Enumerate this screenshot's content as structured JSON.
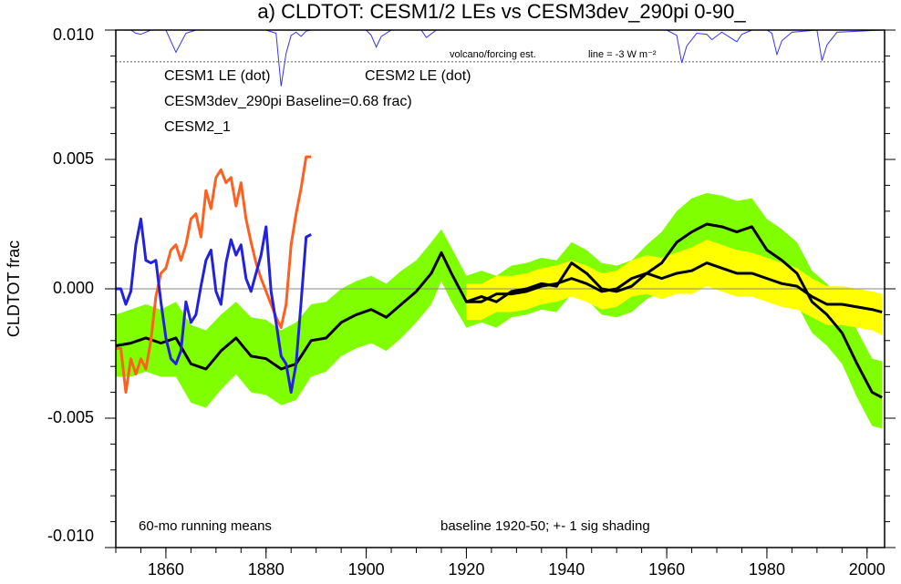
{
  "chart_data": {
    "type": "line",
    "title": "a) CLDTOT: CESM1/2 LEs vs CESM3dev_290pi 0-90_",
    "y_label": "CLDTOT frac",
    "annotations": [
      "60-mo running means",
      "baseline 1920-50; +- 1 sig shading"
    ],
    "xlim": [
      1850,
      2003.5
    ],
    "ylim": [
      -0.01,
      0.01
    ],
    "xticks": [
      1860,
      1880,
      1900,
      1920,
      1940,
      1960,
      1980,
      2000
    ],
    "x_minor_ticks": [
      1850,
      1855,
      1860,
      1865,
      1870,
      1875,
      1880,
      1885,
      1890,
      1895,
      1900,
      1905,
      1910,
      1915,
      1920,
      1925,
      1930,
      1935,
      1940,
      1945,
      1950,
      1955,
      1960,
      1965,
      1970,
      1975,
      1980,
      1985,
      1990,
      1995,
      2000
    ],
    "yticks": [
      {
        "value": -0.01,
        "label": "-0.010"
      },
      {
        "value": -0.005,
        "label": "-0.005"
      },
      {
        "value": 0,
        "label": "0.000"
      },
      {
        "value": 0.005,
        "label": "0.005"
      },
      {
        "value": 0.01,
        "label": "0.010"
      }
    ],
    "y_minor_ticks": [
      -0.01,
      -0.009,
      -0.008,
      -0.007,
      -0.006,
      -0.005,
      -0.004,
      -0.003,
      -0.002,
      -0.001,
      0,
      0.001,
      0.002,
      0.003,
      0.004,
      0.005,
      0.006,
      0.007,
      0.008,
      0.009,
      0.01
    ],
    "reference_line": 0,
    "series": [
      {
        "name": "CESM1 LE (dot)",
        "color": "#ffff00",
        "line_color": "#000000",
        "x": [
          1920,
          1923,
          1926,
          1929,
          1932,
          1935,
          1938,
          1941,
          1944,
          1947,
          1950,
          1953,
          1956,
          1959,
          1962,
          1965,
          1968,
          1971,
          1974,
          1977,
          1980,
          1983,
          1986,
          1989,
          1992,
          1995,
          1998,
          2001,
          2003
        ],
        "values": [
          -0.0005,
          -0.0005,
          -0.0002,
          -0.0002,
          -0.0001,
          0.0001,
          0.0002,
          0.0004,
          0.0002,
          -0.0001,
          0.0,
          0.0004,
          0.0006,
          0.0004,
          0.0006,
          0.0007,
          0.001,
          0.0008,
          0.0006,
          0.0006,
          0.0004,
          0.0002,
          0.0001,
          -0.0003,
          -0.0006,
          -0.0006,
          -0.0007,
          -0.0008,
          -0.0009
        ],
        "upper": [
          0.0002,
          0.0002,
          0.0005,
          0.0005,
          0.0006,
          0.0008,
          0.0009,
          0.0011,
          0.0009,
          0.0006,
          0.0007,
          0.0011,
          0.0013,
          0.0012,
          0.0014,
          0.0016,
          0.0019,
          0.0017,
          0.0015,
          0.0014,
          0.0012,
          0.001,
          0.0008,
          0.0004,
          0.0001,
          0.0001,
          0.0,
          -0.0001,
          -0.0002
        ],
        "lower": [
          -0.0012,
          -0.0012,
          -0.0009,
          -0.0009,
          -0.0008,
          -0.0006,
          -0.0005,
          -0.0003,
          -0.0005,
          -0.0008,
          -0.0007,
          -0.0003,
          -0.0002,
          -0.0004,
          -0.0002,
          -0.0002,
          0.0001,
          -0.0001,
          -0.0003,
          -0.0003,
          -0.0005,
          -0.0007,
          -0.0008,
          -0.0011,
          -0.0014,
          -0.0014,
          -0.0015,
          -0.0016,
          -0.0018
        ]
      },
      {
        "name": "CESM2 LE (dot)",
        "color": "#80ff00",
        "line_color": "#000000",
        "x": [
          1850,
          1853,
          1856,
          1859,
          1862,
          1865,
          1868,
          1871,
          1874,
          1877,
          1880,
          1883,
          1886,
          1889,
          1892,
          1895,
          1898,
          1901,
          1904,
          1907,
          1910,
          1913,
          1915,
          1917,
          1920,
          1923,
          1926,
          1929,
          1932,
          1935,
          1938,
          1941,
          1944,
          1947,
          1950,
          1953,
          1956,
          1959,
          1962,
          1965,
          1968,
          1971,
          1974,
          1977,
          1980,
          1983,
          1986,
          1989,
          1992,
          1995,
          1998,
          2001,
          2003
        ],
        "values": [
          -0.0022,
          -0.0021,
          -0.0019,
          -0.0021,
          -0.0019,
          -0.0029,
          -0.0031,
          -0.0024,
          -0.0019,
          -0.0026,
          -0.0027,
          -0.0031,
          -0.0029,
          -0.002,
          -0.0019,
          -0.0013,
          -0.001,
          -0.0008,
          -0.0011,
          -0.0006,
          -0.0001,
          0.0006,
          0.0014,
          0.0006,
          -0.0005,
          -0.0003,
          -0.0005,
          -0.0001,
          0.0,
          0.0002,
          0.0001,
          0.001,
          0.0006,
          0.0,
          -0.0001,
          0.0001,
          0.0006,
          0.001,
          0.0018,
          0.0022,
          0.0025,
          0.0024,
          0.0022,
          0.0024,
          0.0015,
          0.0011,
          0.0006,
          -0.0005,
          -0.001,
          -0.0017,
          -0.0029,
          -0.004,
          -0.0042
        ],
        "upper": [
          -0.001,
          -0.0008,
          -0.0006,
          -0.0008,
          -0.0005,
          -0.0014,
          -0.0016,
          -0.001,
          -0.0005,
          -0.0011,
          -0.0012,
          -0.0016,
          -0.0013,
          -0.0006,
          -0.0005,
          0.0,
          0.0003,
          0.0005,
          0.0002,
          0.0007,
          0.0011,
          0.0018,
          0.0023,
          0.0016,
          0.0005,
          0.0007,
          0.0005,
          0.0009,
          0.001,
          0.0012,
          0.0011,
          0.0018,
          0.0015,
          0.001,
          0.0009,
          0.0011,
          0.0017,
          0.0022,
          0.003,
          0.0035,
          0.0037,
          0.0036,
          0.0034,
          0.0035,
          0.0027,
          0.0023,
          0.0018,
          0.0007,
          0.0002,
          -0.0005,
          -0.0016,
          -0.0027,
          -0.0028
        ],
        "lower": [
          -0.0034,
          -0.0034,
          -0.0032,
          -0.0034,
          -0.0034,
          -0.0044,
          -0.0046,
          -0.0039,
          -0.0033,
          -0.004,
          -0.0041,
          -0.0045,
          -0.0043,
          -0.0034,
          -0.0032,
          -0.0026,
          -0.0023,
          -0.0021,
          -0.0024,
          -0.0019,
          -0.0013,
          -0.0006,
          0.0003,
          -0.0005,
          -0.0015,
          -0.0013,
          -0.0015,
          -0.0011,
          -0.001,
          -0.0008,
          -0.0009,
          -0.0002,
          -0.0004,
          -0.001,
          -0.0011,
          -0.0009,
          -0.0004,
          -0.0001,
          0.0006,
          0.0009,
          0.0012,
          0.0011,
          0.001,
          0.0012,
          0.0003,
          -0.0001,
          -0.0006,
          -0.0017,
          -0.0022,
          -0.0029,
          -0.0042,
          -0.0053,
          -0.0054
        ]
      },
      {
        "name": "CESM3dev_290pi Baseline=0.68 frac)",
        "color": "#ff6020",
        "x": [
          1850,
          1851,
          1852,
          1853,
          1854,
          1855,
          1856,
          1857,
          1858,
          1859,
          1860,
          1861,
          1862,
          1863,
          1864,
          1865,
          1866,
          1867,
          1868,
          1869,
          1870,
          1871,
          1872,
          1873,
          1874,
          1875,
          1876,
          1877,
          1878,
          1879,
          1880,
          1881,
          1882,
          1883,
          1884,
          1885,
          1886,
          1887,
          1888,
          1889
        ],
        "values": [
          -0.0023,
          -0.0023,
          -0.004,
          -0.0027,
          -0.0033,
          -0.0027,
          -0.0031,
          -0.002,
          -0.0003,
          0.0006,
          0.0008,
          0.0015,
          0.0017,
          0.0011,
          0.0017,
          0.0027,
          0.0029,
          0.002,
          0.0038,
          0.0031,
          0.0043,
          0.0046,
          0.0041,
          0.0043,
          0.0032,
          0.0041,
          0.0027,
          0.0018,
          0.001,
          0.0004,
          -0.0001,
          -0.0006,
          -0.0011,
          -0.0015,
          -0.0006,
          0.0017,
          0.0029,
          0.0039,
          0.0051,
          0.0051
        ]
      },
      {
        "name": "CESM2_1",
        "color": "#2222dd",
        "x": [
          1850,
          1851,
          1852,
          1853,
          1854,
          1855,
          1856,
          1857,
          1858,
          1859,
          1860,
          1861,
          1862,
          1863,
          1864,
          1865,
          1866,
          1867,
          1868,
          1869,
          1870,
          1871,
          1872,
          1873,
          1874,
          1875,
          1876,
          1877,
          1878,
          1879,
          1880,
          1881,
          1882,
          1883,
          1884,
          1885,
          1886,
          1887,
          1888,
          1889
        ],
        "values": [
          0.0,
          0.0,
          -0.0006,
          -0.0001,
          0.0017,
          0.0027,
          0.0011,
          0.001,
          0.0011,
          -0.0005,
          -0.0019,
          -0.0027,
          -0.0029,
          -0.0024,
          -0.0005,
          -0.0013,
          -0.001,
          0.0001,
          0.0011,
          0.0015,
          -0.0001,
          -0.0006,
          0.001,
          0.0019,
          0.0013,
          0.0017,
          0.0004,
          -0.0001,
          0.0006,
          0.0013,
          0.0024,
          -0.0001,
          -0.0013,
          -0.0026,
          -0.0029,
          -0.004,
          -0.0029,
          -0.0005,
          0.002,
          0.0021
        ]
      }
    ],
    "volcano": {
      "label": "volcano/forcing est.",
      "line_label": "line = -3 W m⁻²",
      "reference_value": -3,
      "ylim": [
        -8.6,
        0
      ],
      "color": "#3333ff",
      "x": [
        1850,
        1853,
        1854,
        1855,
        1857,
        1860,
        1862,
        1864,
        1866,
        1880,
        1882,
        1883,
        1884,
        1885,
        1886,
        1887,
        1888,
        1889,
        1900,
        1901,
        1902,
        1903,
        1905,
        1911,
        1912,
        1914,
        1960,
        1962,
        1963,
        1964,
        1966,
        1968,
        1969,
        1971,
        1974,
        1975,
        1977,
        1980,
        1981,
        1982,
        1983,
        1985,
        1990,
        1991,
        1992,
        1994,
        2003
      ],
      "values": [
        0,
        0,
        -0.3,
        -0.4,
        0,
        0,
        -2.1,
        -0.3,
        0,
        0,
        -0.3,
        -5.3,
        -2.2,
        -0.5,
        -0.2,
        -0.6,
        -0.1,
        0,
        0,
        -0.5,
        -1.6,
        -0.6,
        0,
        0,
        -0.7,
        0,
        0,
        -0.5,
        -3.1,
        -1.5,
        -0.3,
        -0.4,
        -0.9,
        -0.2,
        -1.1,
        -0.4,
        0,
        0,
        -0.3,
        -2.3,
        -1.0,
        -0.2,
        0,
        -2.9,
        -1.4,
        -0.2,
        0
      ]
    }
  }
}
